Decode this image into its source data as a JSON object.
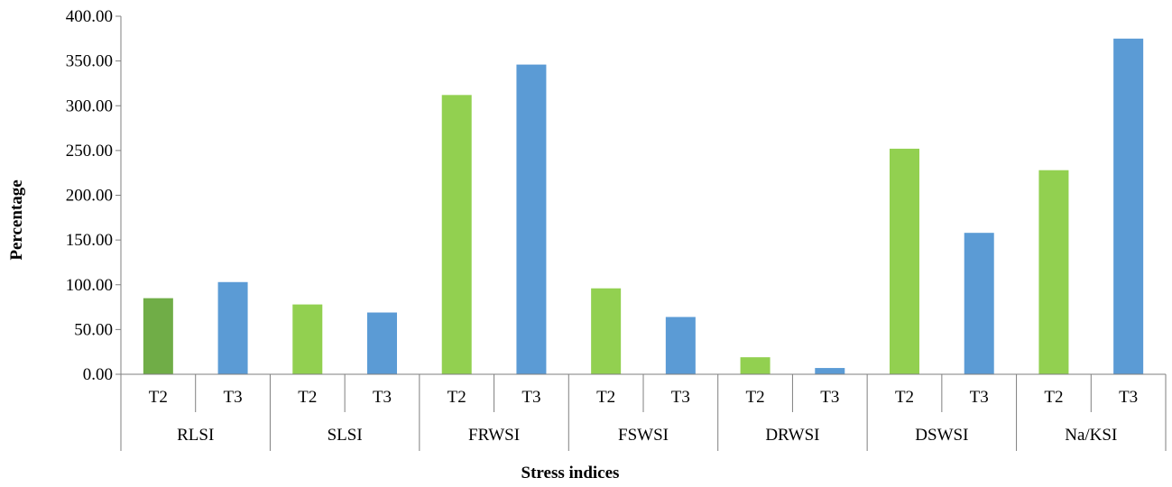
{
  "chart_data": {
    "type": "bar",
    "xlabel": "Stress indices",
    "ylabel": "Percentage",
    "ylim": [
      0,
      400
    ],
    "yticks": [
      "0.00",
      "50.00",
      "100.00",
      "150.00",
      "200.00",
      "250.00",
      "300.00",
      "350.00",
      "400.00"
    ],
    "grid": false,
    "groups": [
      {
        "label": "RLSI",
        "bars": [
          {
            "label": "T2",
            "value": 85,
            "color": "#70ad47"
          },
          {
            "label": "T3",
            "value": 103,
            "color": "#5b9bd5"
          }
        ]
      },
      {
        "label": "SLSI",
        "bars": [
          {
            "label": "T2",
            "value": 78,
            "color": "#92d050"
          },
          {
            "label": "T3",
            "value": 69,
            "color": "#5b9bd5"
          }
        ]
      },
      {
        "label": "FRWSI",
        "bars": [
          {
            "label": "T2",
            "value": 312,
            "color": "#92d050"
          },
          {
            "label": "T3",
            "value": 346,
            "color": "#5b9bd5"
          }
        ]
      },
      {
        "label": "FSWSI",
        "bars": [
          {
            "label": "T2",
            "value": 96,
            "color": "#92d050"
          },
          {
            "label": "T3",
            "value": 64,
            "color": "#5b9bd5"
          }
        ]
      },
      {
        "label": "DRWSI",
        "bars": [
          {
            "label": "T2",
            "value": 19,
            "color": "#92d050"
          },
          {
            "label": "T3",
            "value": 7,
            "color": "#5b9bd5"
          }
        ]
      },
      {
        "label": "DSWSI",
        "bars": [
          {
            "label": "T2",
            "value": 252,
            "color": "#92d050"
          },
          {
            "label": "T3",
            "value": 158,
            "color": "#5b9bd5"
          }
        ]
      },
      {
        "label": "Na/KSI",
        "bars": [
          {
            "label": "T2",
            "value": 228,
            "color": "#92d050"
          },
          {
            "label": "T3",
            "value": 375,
            "color": "#5b9bd5"
          }
        ]
      }
    ]
  }
}
